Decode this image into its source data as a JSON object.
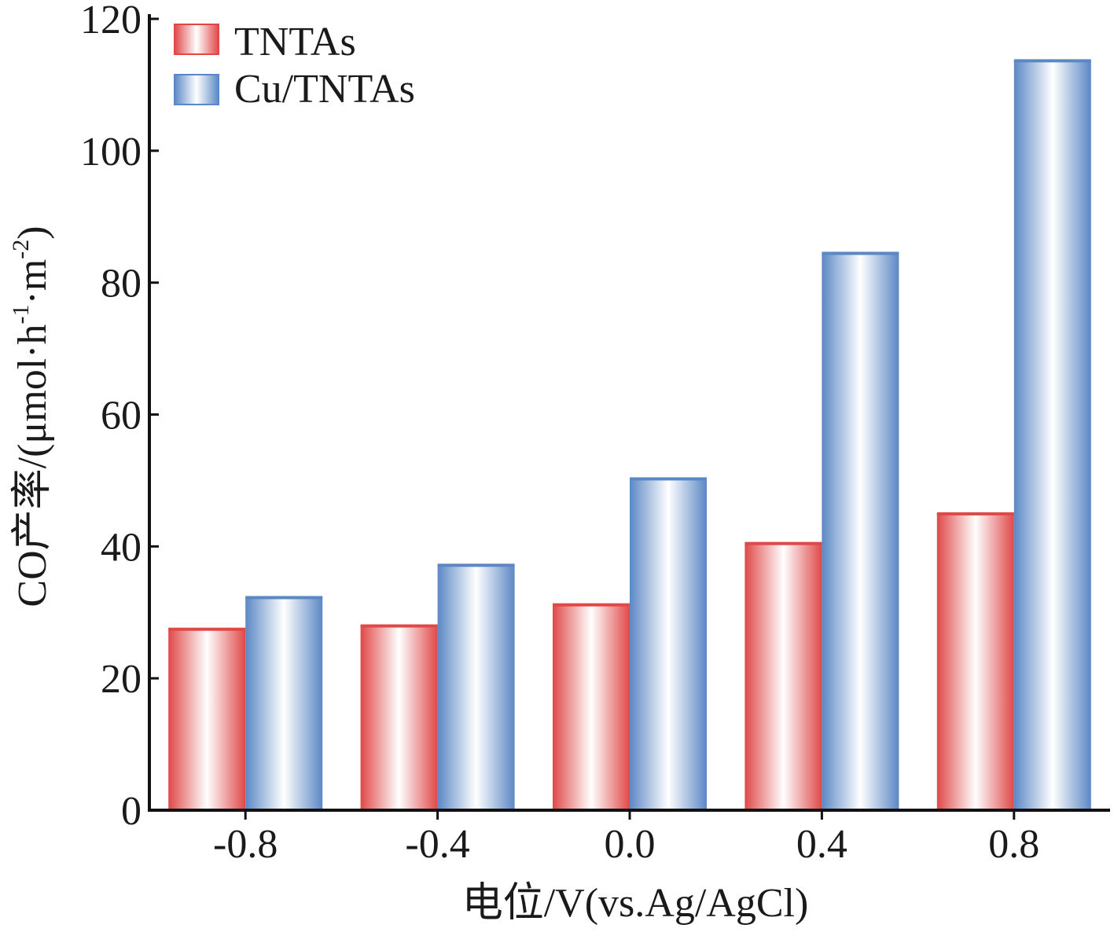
{
  "chart_data": {
    "type": "bar",
    "title": "",
    "xlabel": "电位/V(vs.Ag/AgCl)",
    "ylabel": "CO产率/(μmol·h⁻¹·m⁻²)",
    "ylabel_parts": {
      "prefix": "CO产率/(μmol·h",
      "sup1": "-1",
      "mid": "·m",
      "sup2": "-2",
      "suffix": ")"
    },
    "categories": [
      "-0.8",
      "-0.4",
      "0.0",
      "0.4",
      "0.8"
    ],
    "series": [
      {
        "name": "TNTAs",
        "values": [
          27.5,
          28,
          31.2,
          40.5,
          45
        ],
        "color": "#e04848"
      },
      {
        "name": "Cu/TNTAs",
        "values": [
          32.3,
          37.2,
          50.3,
          84.5,
          113.7
        ],
        "color": "#5b88c4"
      }
    ],
    "ylim": [
      0,
      120
    ],
    "yticks": [
      "0",
      "20",
      "40",
      "60",
      "80",
      "100",
      "120"
    ],
    "grid": false,
    "legend_position": "top-left"
  }
}
